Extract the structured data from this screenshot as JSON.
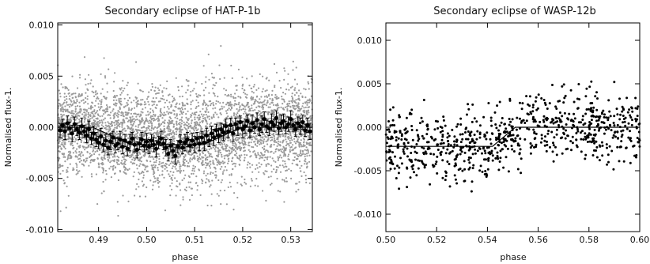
{
  "chart_data": [
    {
      "type": "scatter",
      "title": "Secondary eclipse of HAT-P-1b",
      "xlabel": "phase",
      "ylabel": "Normalised flux-1.",
      "xlim": [
        0.4815,
        0.5345
      ],
      "ylim": [
        -0.0102,
        0.0102
      ],
      "x_ticks": [
        0.49,
        0.5,
        0.51,
        0.52,
        0.53
      ],
      "x_tick_labels": [
        "0.49",
        "0.50",
        "0.51",
        "0.52",
        "0.53"
      ],
      "y_ticks": [
        -0.01,
        -0.005,
        0.0,
        0.005,
        0.01
      ],
      "y_tick_labels": [
        "-0.010",
        "-0.005",
        "0.000",
        "0.005",
        "0.010"
      ],
      "grid": false,
      "legend": "none",
      "colors": {
        "raw": "#9a9a9a",
        "binned": "#000000",
        "model": "#000000"
      },
      "raw_scatter": {
        "n": 4200,
        "center": -0.0002,
        "spread": 0.0023,
        "color": "grey"
      },
      "model": {
        "type": "eclipse",
        "out_level": 0.0,
        "in_level": -0.0017,
        "ingress": [
          0.4888,
          0.4968
        ],
        "egress": [
          0.5118,
          0.5198
        ]
      },
      "binned_x": [
        0.482,
        0.4825,
        0.483,
        0.4835,
        0.484,
        0.4845,
        0.485,
        0.4855,
        0.486,
        0.4865,
        0.487,
        0.4875,
        0.488,
        0.4885,
        0.489,
        0.4895,
        0.49,
        0.4905,
        0.491,
        0.4915,
        0.492,
        0.4925,
        0.493,
        0.4935,
        0.494,
        0.4945,
        0.495,
        0.4955,
        0.496,
        0.4965,
        0.497,
        0.4975,
        0.498,
        0.4985,
        0.499,
        0.4995,
        0.5,
        0.5005,
        0.501,
        0.5015,
        0.502,
        0.5025,
        0.503,
        0.5035,
        0.504,
        0.5045,
        0.505,
        0.5055,
        0.506,
        0.5065,
        0.507,
        0.5075,
        0.508,
        0.5085,
        0.509,
        0.5095,
        0.51,
        0.5105,
        0.511,
        0.5115,
        0.512,
        0.5125,
        0.513,
        0.5135,
        0.514,
        0.5145,
        0.515,
        0.5155,
        0.516,
        0.5165,
        0.517,
        0.5175,
        0.518,
        0.5185,
        0.519,
        0.5195,
        0.52,
        0.5205,
        0.521,
        0.5215,
        0.522,
        0.5225,
        0.523,
        0.5235,
        0.524,
        0.5245,
        0.525,
        0.5255,
        0.526,
        0.5265,
        0.527,
        0.5275,
        0.528,
        0.5285,
        0.529,
        0.5295,
        0.53,
        0.5305,
        0.531,
        0.5315,
        0.532,
        0.5325,
        0.533,
        0.5335,
        0.534
      ],
      "binned_y": [
        -0.0003,
        0.0002,
        -0.0004,
        0.0004,
        -0.0001,
        -0.0006,
        0.0003,
        -0.0002,
        -0.0005,
        0.0001,
        -0.0004,
        -0.0008,
        -0.0002,
        -0.0011,
        -0.0006,
        -0.0012,
        -0.0015,
        -0.0009,
        -0.0017,
        -0.0013,
        -0.002,
        -0.0014,
        -0.001,
        -0.0018,
        -0.0016,
        -0.0012,
        -0.0019,
        -0.0013,
        -0.0021,
        -0.0015,
        -0.0011,
        -0.0017,
        -0.0022,
        -0.0016,
        -0.0012,
        -0.0018,
        -0.0014,
        -0.0019,
        -0.0013,
        -0.0017,
        -0.0021,
        -0.0015,
        -0.0011,
        -0.0016,
        -0.002,
        -0.0026,
        -0.0018,
        -0.0023,
        -0.0028,
        -0.0019,
        -0.0014,
        -0.002,
        -0.0015,
        -0.0012,
        -0.0018,
        -0.0013,
        -0.0017,
        -0.0011,
        -0.0016,
        -0.001,
        -0.0015,
        -0.0008,
        -0.0013,
        -0.0006,
        -0.001,
        -0.0003,
        -0.0008,
        -0.0002,
        -0.0005,
        0.0001,
        -0.0004,
        0.0002,
        -0.0006,
        0.0003,
        -0.0001,
        0.0005,
        -0.0002,
        0.0001,
        0.0006,
        -0.0003,
        0.0004,
        0.0,
        0.0007,
        -0.0002,
        0.0003,
        0.0008,
        0.0001,
        -0.0001,
        0.0005,
        0.0002,
        0.0009,
        -0.0001,
        0.0004,
        0.0006,
        0.0,
        0.0003,
        0.0008,
        0.0002,
        -0.0002,
        0.0004,
        0.0001,
        0.0005,
        -0.0003,
        0.0002,
        -0.0004
      ],
      "binned_err": [
        0.0007,
        0.0006,
        0.0008,
        0.0007,
        0.0006,
        0.0008,
        0.0007,
        0.0006,
        0.0007,
        0.0008,
        0.0006,
        0.0007,
        0.0008,
        0.0006,
        0.0007,
        0.0007,
        0.0006,
        0.0008,
        0.0007,
        0.0006,
        0.0007,
        0.0008,
        0.0006,
        0.0007,
        0.0006,
        0.0008,
        0.0007,
        0.0006,
        0.0007,
        0.0008,
        0.0006,
        0.0007,
        0.0008,
        0.0006,
        0.0007,
        0.0006,
        0.0008,
        0.0007,
        0.0006,
        0.0007,
        0.0008,
        0.0006,
        0.0007,
        0.0006,
        0.0008,
        0.0007,
        0.0006,
        0.0007,
        0.0008,
        0.0006,
        0.0007,
        0.0006,
        0.0008,
        0.0007,
        0.0006,
        0.0007,
        0.0008,
        0.0006,
        0.0007,
        0.0006,
        0.0008,
        0.0007,
        0.0006,
        0.0007,
        0.0008,
        0.0006,
        0.0007,
        0.0006,
        0.0008,
        0.0007,
        0.0006,
        0.0007,
        0.0008,
        0.0006,
        0.0007,
        0.0006,
        0.0008,
        0.0007,
        0.0006,
        0.0007,
        0.0008,
        0.0006,
        0.0007,
        0.0006,
        0.0008,
        0.0007,
        0.0006,
        0.0007,
        0.0008,
        0.0006,
        0.0007,
        0.0006,
        0.0008,
        0.0007,
        0.0006,
        0.0007,
        0.0008,
        0.0006,
        0.0007,
        0.0006,
        0.0008,
        0.0007,
        0.0006,
        0.0007,
        0.0008
      ]
    },
    {
      "type": "scatter",
      "title": "Secondary eclipse of WASP-12b",
      "xlabel": "phase",
      "ylabel": "Normalised flux-1.",
      "xlim": [
        0.5,
        0.6
      ],
      "ylim": [
        -0.012,
        0.012
      ],
      "x_ticks": [
        0.5,
        0.52,
        0.54,
        0.56,
        0.58,
        0.6
      ],
      "x_tick_labels": [
        "0.50",
        "0.52",
        "0.54",
        "0.56",
        "0.58",
        "0.60"
      ],
      "y_ticks": [
        -0.01,
        -0.005,
        0.0,
        0.005,
        0.01
      ],
      "y_tick_labels": [
        "-0.010",
        "-0.005",
        "0.000",
        "0.005",
        "0.010"
      ],
      "grid": false,
      "legend": "none",
      "colors": {
        "points": "#000000",
        "model": "#000000"
      },
      "points_scatter": {
        "n": 820,
        "center_in": -0.0022,
        "center_out": 0.0,
        "spread": 0.0019,
        "color": "black"
      },
      "model": {
        "type": "eclipse-egress",
        "in_level": -0.0022,
        "out_level": 0.0,
        "in_until": 0.542,
        "egress": [
          0.542,
          0.551
        ]
      }
    }
  ]
}
